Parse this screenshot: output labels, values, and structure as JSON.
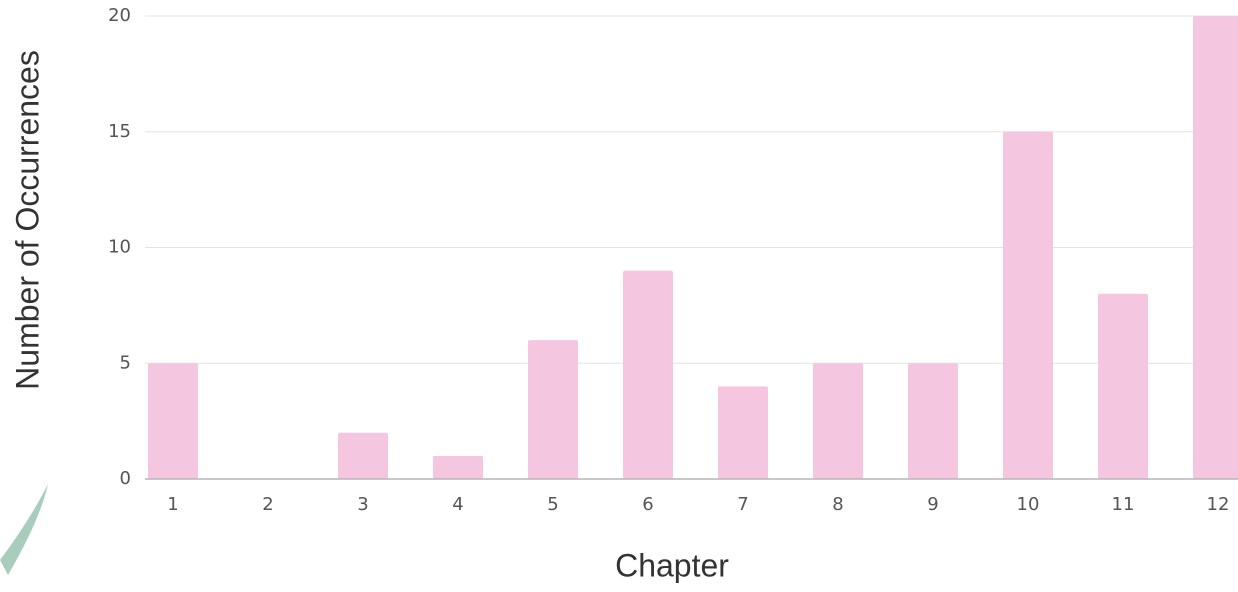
{
  "chart_data": {
    "type": "bar",
    "x_label": "Chapter",
    "y_label": "Number of Occurrences",
    "categories": [
      "1",
      "2",
      "3",
      "4",
      "5",
      "6",
      "7",
      "8",
      "9",
      "10",
      "11",
      "12"
    ],
    "values": [
      5,
      0,
      2,
      1,
      6,
      9,
      4,
      5,
      5,
      15,
      8,
      20
    ],
    "color": "#f5c6e0",
    "ylim": [
      0,
      20
    ],
    "yticks": [
      0,
      5,
      10,
      15,
      20
    ],
    "grid": true
  }
}
